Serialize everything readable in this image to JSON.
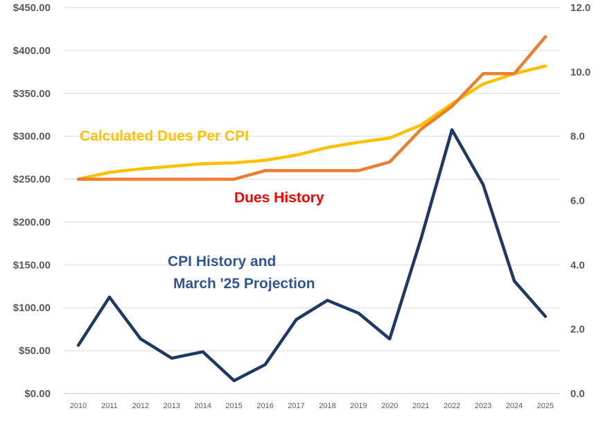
{
  "chart_data": {
    "type": "line",
    "title": "",
    "categories": [
      "2010",
      "2011",
      "2012",
      "2013",
      "2014",
      "2015",
      "2016",
      "2017",
      "2018",
      "2019",
      "2020",
      "2021",
      "2022",
      "2023",
      "2024",
      "2025"
    ],
    "left_axis": {
      "ylim": [
        0,
        450
      ],
      "ticks": [
        0,
        50,
        100,
        150,
        200,
        250,
        300,
        350,
        400,
        450
      ],
      "tick_labels": [
        "$0.00",
        "$50.00",
        "$100.00",
        "$150.00",
        "$200.00",
        "$250.00",
        "$300.00",
        "$350.00",
        "$400.00",
        "$450.00"
      ]
    },
    "right_axis": {
      "ylim": [
        0,
        12
      ],
      "ticks": [
        0,
        2,
        4,
        6,
        8,
        10,
        12
      ],
      "tick_labels": [
        "0.0",
        "2.0",
        "4.0",
        "6.0",
        "8.0",
        "10.0",
        "12.0"
      ]
    },
    "grid": true,
    "series": [
      {
        "name": "Calculated Dues Per CPI",
        "axis": "left",
        "color": "#FFC000",
        "values": [
          250,
          258,
          262,
          265,
          268,
          269,
          272,
          278,
          287,
          293,
          298,
          313,
          338,
          361,
          373,
          382
        ]
      },
      {
        "name": "Dues History",
        "axis": "left",
        "color": "#ED7D31",
        "values": [
          250,
          250,
          250,
          250,
          250,
          250,
          260,
          260,
          260,
          260,
          270,
          308,
          335,
          373,
          373,
          416
        ]
      },
      {
        "name": "CPI History and March '25 Projection",
        "axis": "right",
        "color": "#203864",
        "values": [
          1.5,
          3.0,
          1.7,
          1.1,
          1.3,
          0.4,
          0.9,
          2.3,
          2.9,
          2.5,
          1.7,
          4.8,
          8.2,
          6.5,
          3.5,
          2.4
        ]
      }
    ],
    "annotations": [
      {
        "text": "Calculated Dues Per CPI",
        "color": "#FFC000"
      },
      {
        "text": "Dues History",
        "color": "#FF0000"
      },
      {
        "text": "CPI History and",
        "color": "#2F5597"
      },
      {
        "text": "March '25 Projection",
        "color": "#2F5597"
      }
    ]
  }
}
